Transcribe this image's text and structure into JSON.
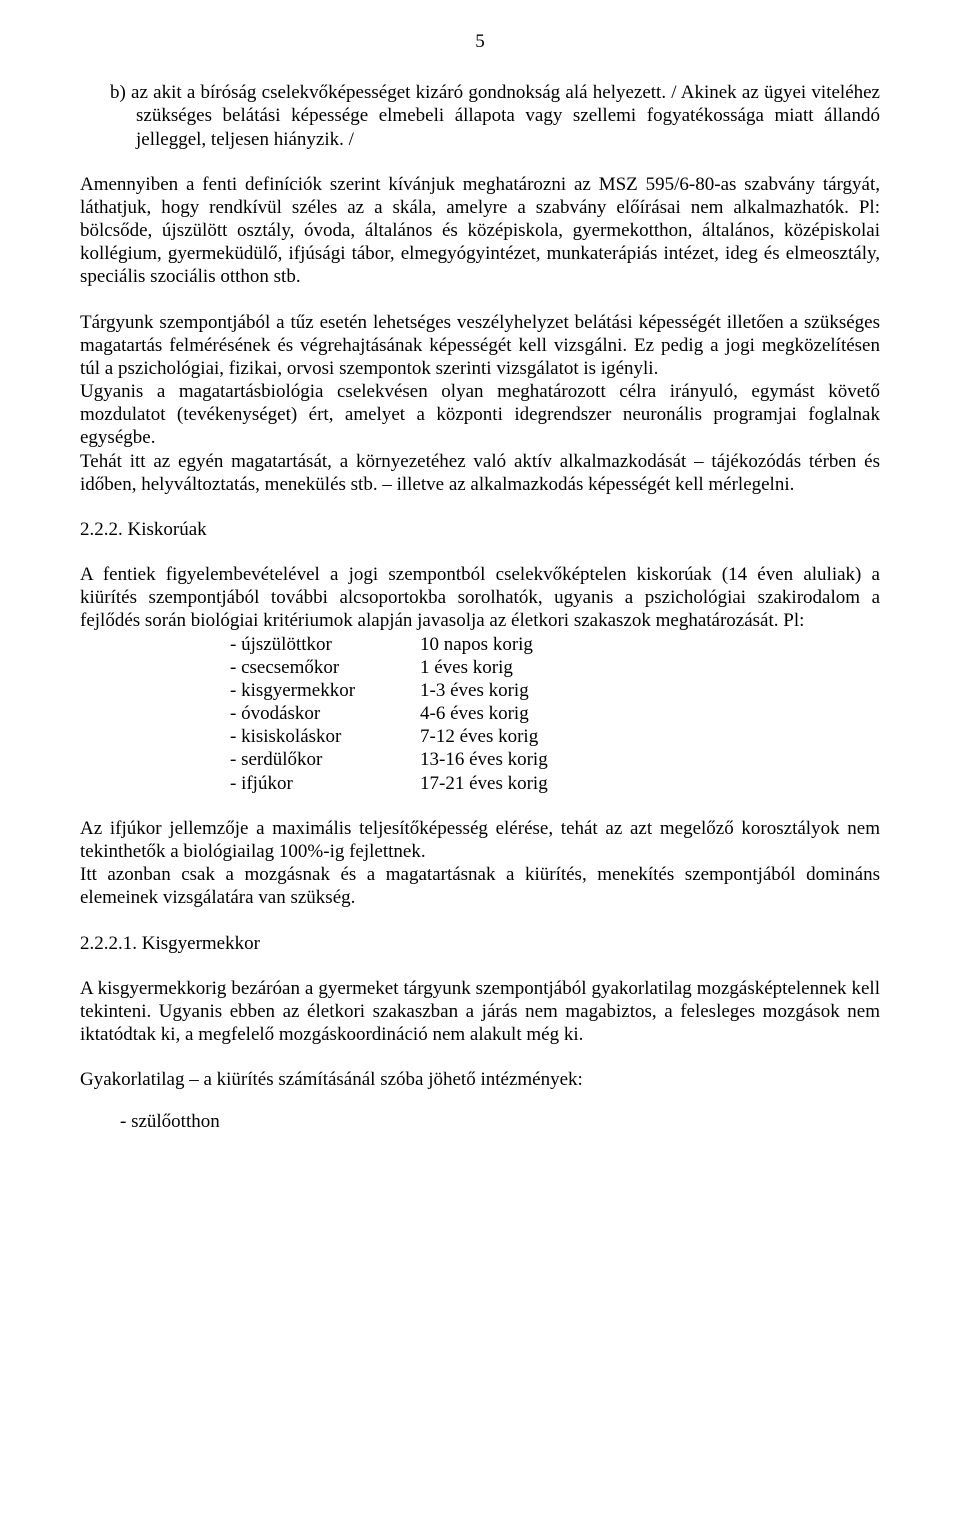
{
  "pageNumber": "5",
  "listB": "b)  az akit a bíróság cselekvőképességet kizáró gondnokság alá helyezett. / Akinek az ügyei viteléhez szükséges belátási képessége elmebeli állapota vagy szellemi fogyatékossága miatt állandó jelleggel, teljesen hiányzik. /",
  "para1": "Amennyiben a fenti definíciók szerint kívánjuk meghatározni az MSZ 595/6-80-as szabvány tárgyát, láthatjuk, hogy rendkívül széles az a skála, amelyre a szabvány előírásai nem alkalmazhatók. Pl: bölcsőde, újszülött osztály, óvoda, általános és középiskola, gyermekotthon, általános, középiskolai kollégium, gyermeküdülő, ifjúsági tábor, elmegyógyintézet, munkaterápiás intézet, ideg és elmeosztály, speciális szociális otthon stb.",
  "para2a": "Tárgyunk szempontjából a tűz esetén lehetséges veszélyhelyzet belátási képességét illetően a szükséges magatartás felmérésének és végrehajtásának képességét kell vizsgálni. Ez pedig a jogi megközelítésen túl a pszichológiai, fizikai, orvosi szempontok szerinti vizsgálatot is igényli.",
  "para2b": "Ugyanis a magatartásbiológia cselekvésen olyan meghatározott célra irányuló, egymást követő mozdulatot (tevékenységet) ért, amelyet a központi idegrendszer neuronális programjai foglalnak egységbe.",
  "para2c": "Tehát itt az egyén magatartását, a környezetéhez való aktív alkalmazkodását – tájékozódás térben és időben, helyváltoztatás, menekülés stb. – illetve az alkalmazkodás képességét kell mérlegelni.",
  "section222": "2.2.2. Kiskorúak",
  "para3": "A fentiek figyelembevételével a jogi szempontból cselekvőképtelen kiskorúak (14 éven aluliak) a kiürítés szempontjából további alcsoportokba sorolhatók, ugyanis a pszichológiai szakirodalom a fejlődés során biológiai kritériumok alapján javasolja az életkori szakaszok meghatározását. Pl:",
  "ageTable": [
    {
      "label": "- újszülöttkor",
      "value": "10 napos korig"
    },
    {
      "label": "- csecsemőkor",
      "value": "1 éves korig"
    },
    {
      "label": "- kisgyermekkor",
      "value": "1-3 éves korig"
    },
    {
      "label": "- óvodáskor",
      "value": "4-6 éves korig"
    },
    {
      "label": "- kisiskoláskor",
      "value": "7-12 éves korig"
    },
    {
      "label": "- serdülőkor",
      "value": "13-16 éves korig"
    },
    {
      "label": "- ifjúkor",
      "value": "17-21 éves korig"
    }
  ],
  "para4a": "Az ifjúkor jellemzője a maximális teljesítőképesség elérése, tehát az azt megelőző korosztályok nem tekinthetők a biológiailag 100%-ig fejlettnek.",
  "para4b": "Itt azonban csak a mozgásnak és a magatartásnak a kiürítés, menekítés szempontjából domináns elemeinek vizsgálatára van szükség.",
  "section2221": "2.2.2.1. Kisgyermekkor",
  "para5": "A kisgyermekkorig bezáróan a gyermeket tárgyunk szempontjából gyakorlatilag mozgásképtelennek kell tekinteni. Ugyanis ebben az életkori szakaszban a járás nem magabiztos, a felesleges mozgások nem iktatódtak ki, a megfelelő mozgáskoordináció nem alakult még ki.",
  "para6": "Gyakorlatilag – a kiürítés számításánál szóba jöhető intézmények:",
  "bullet1": "-    szülőotthon"
}
